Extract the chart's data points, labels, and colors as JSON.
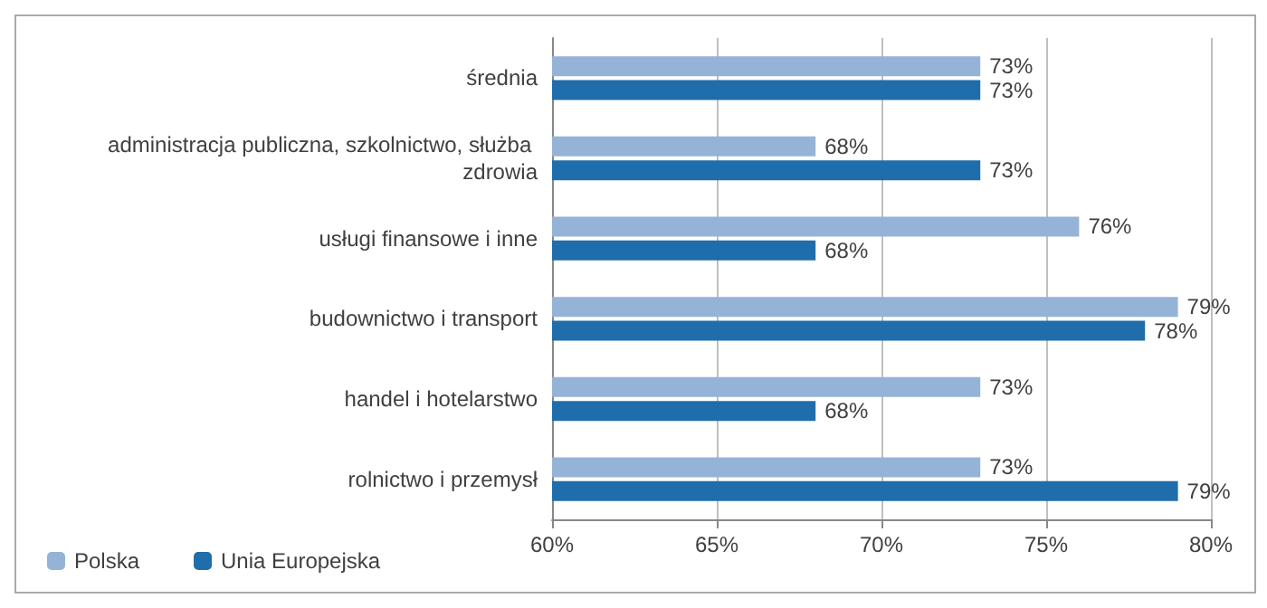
{
  "chart_data": {
    "type": "bar",
    "orientation": "horizontal",
    "categories": [
      "średnia",
      "administracja publiczna, szkolnictwo, służba zdrowia",
      "usługi finansowe i inne",
      "budownictwo i transport",
      "handel i hotelarstwo",
      "rolnictwo i przemysł"
    ],
    "series": [
      {
        "name": "Polska",
        "color": "#95b3d7",
        "values": [
          73,
          68,
          76,
          79,
          73,
          73
        ],
        "value_labels": [
          "73%",
          "68%",
          "76%",
          "79%",
          "73%",
          "73%"
        ]
      },
      {
        "name": "Unia Europejska",
        "color": "#1f6dab",
        "values": [
          73,
          73,
          68,
          78,
          68,
          79
        ],
        "value_labels": [
          "73%",
          "73%",
          "68%",
          "78%",
          "68%",
          "79%"
        ]
      }
    ],
    "xlim": [
      60,
      80
    ],
    "xticks": [
      {
        "value": 60,
        "label": "60%"
      },
      {
        "value": 65,
        "label": "65%"
      },
      {
        "value": 70,
        "label": "70%"
      },
      {
        "value": 75,
        "label": "75%"
      },
      {
        "value": 80,
        "label": "80%"
      }
    ],
    "grid": "x",
    "legend": "bottom left"
  }
}
